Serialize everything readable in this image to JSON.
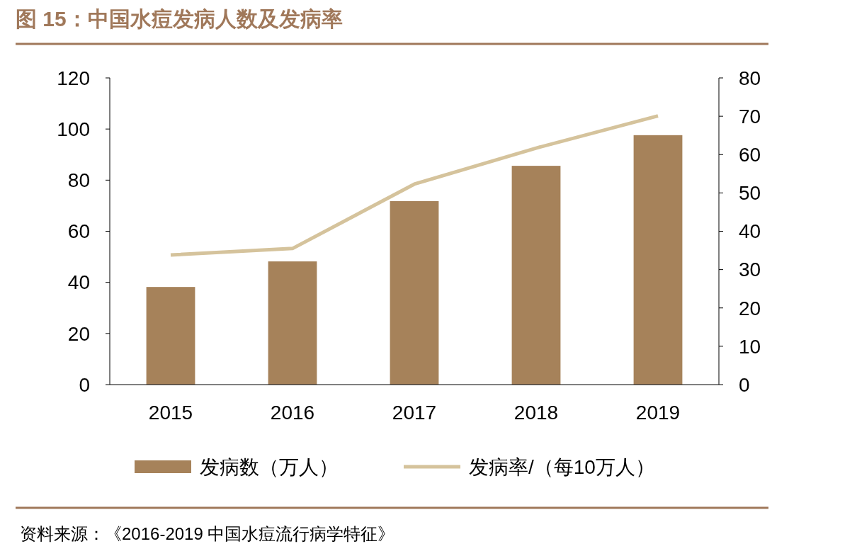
{
  "chart_data": {
    "type": "bar",
    "title": "图 15：中国水痘发病人数及发病率",
    "categories": [
      "2015",
      "2016",
      "2017",
      "2018",
      "2019"
    ],
    "series": [
      {
        "name": "发病数（万人）",
        "color": "#a6825a",
        "values": [
          38.2,
          48.2,
          71.8,
          85.6,
          97.6
        ]
      },
      {
        "name": "发病率/（每10万人）",
        "type": "line",
        "axis": "y2",
        "color": "#d5c39c",
        "values": [
          33.8,
          35.5,
          52.3,
          61.7,
          70.1
        ]
      }
    ],
    "ylim": [
      0,
      120
    ],
    "yticks": [
      0,
      20,
      40,
      60,
      80,
      100,
      120
    ],
    "y2lim": [
      0,
      80
    ],
    "y2ticks": [
      0,
      10,
      20,
      30,
      40,
      50,
      60,
      70,
      80
    ],
    "grid": false,
    "legend": "bottom",
    "marker": "none",
    "line_style": "solid",
    "annotations": [
      "资料来源：《2016-2019 中国水痘流行病学特征》"
    ]
  }
}
